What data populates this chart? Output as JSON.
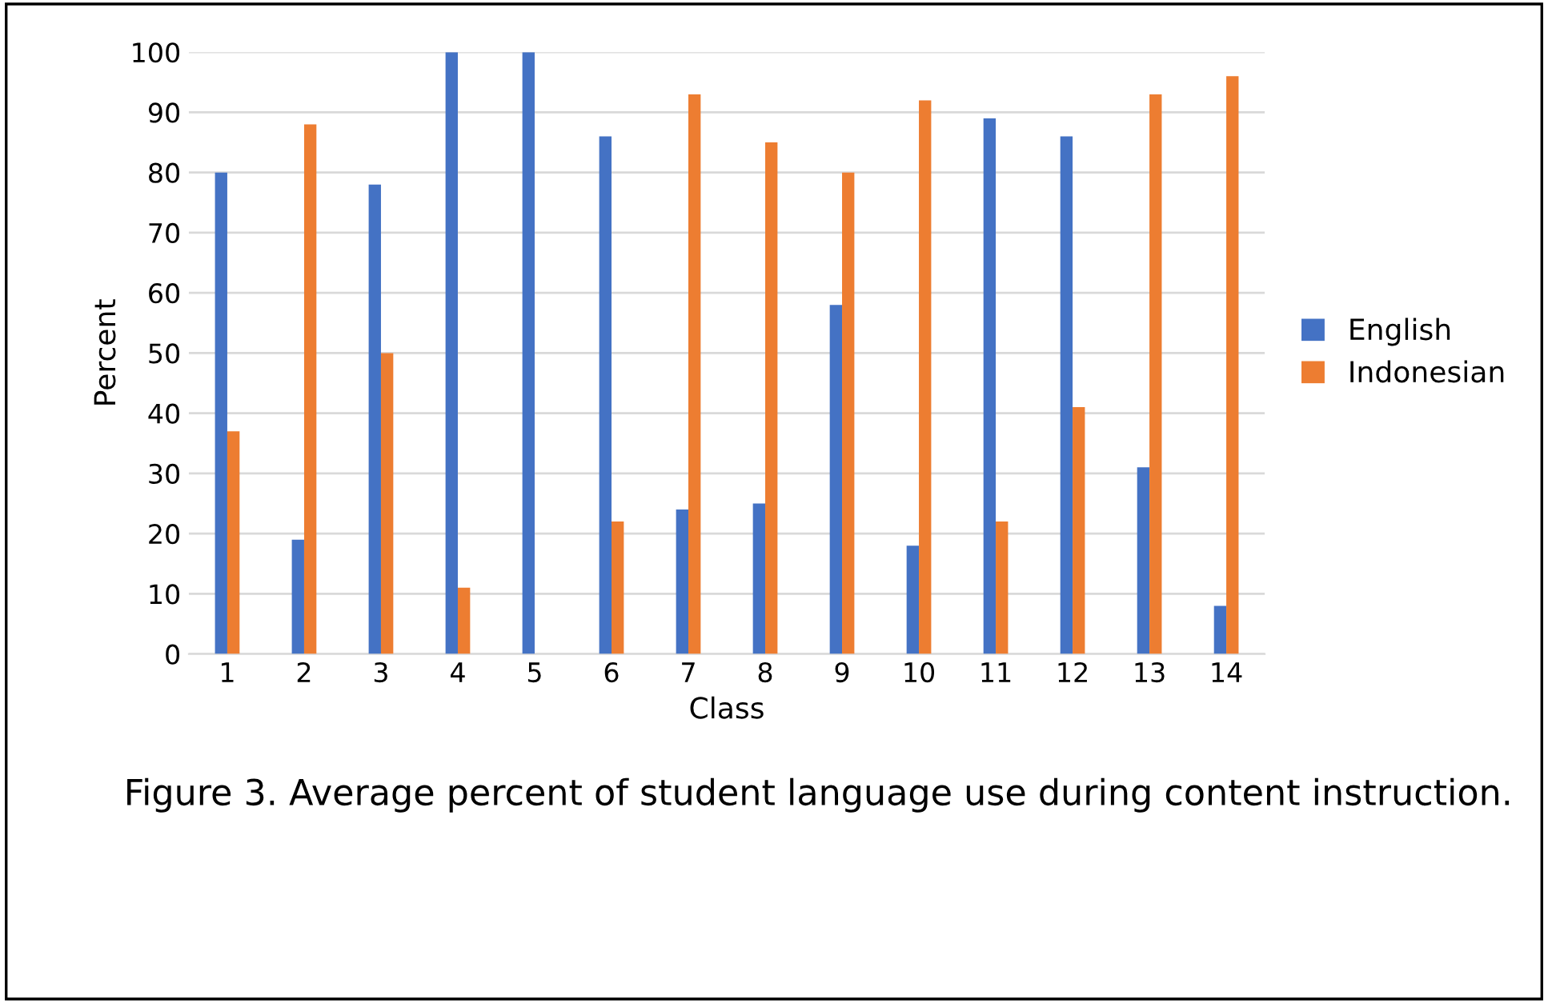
{
  "chart_data": {
    "type": "bar",
    "xlabel": "Class",
    "ylabel": "Percent",
    "categories": [
      "1",
      "2",
      "3",
      "4",
      "5",
      "6",
      "7",
      "8",
      "9",
      "10",
      "11",
      "12",
      "13",
      "14"
    ],
    "series": [
      {
        "name": "English",
        "color": "#4472c4",
        "values": [
          80,
          19,
          78,
          100,
          100,
          86,
          24,
          25,
          58,
          18,
          89,
          86,
          31,
          8
        ]
      },
      {
        "name": "Indonesian",
        "color": "#ed7d31",
        "values": [
          37,
          88,
          50,
          11,
          0,
          22,
          93,
          85,
          80,
          92,
          22,
          41,
          93,
          96
        ]
      }
    ],
    "ylim": [
      0,
      100
    ],
    "yticks": [
      0,
      10,
      20,
      30,
      40,
      50,
      60,
      70,
      80,
      90,
      100
    ],
    "grid": "y",
    "legend": "right",
    "annotations": [
      "Figure 3. Average percent of student language use during content instruction."
    ]
  }
}
